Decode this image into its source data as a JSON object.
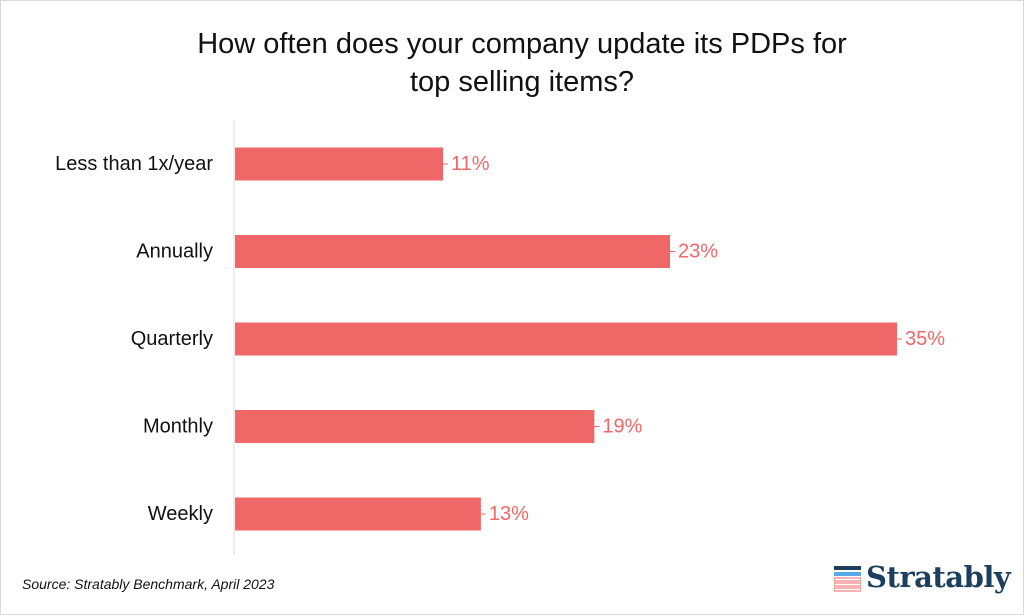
{
  "chart_data": {
    "type": "bar",
    "orientation": "horizontal",
    "title": "How often does your company update its PDPs for top selling items?",
    "title_lines": [
      "How often does your company update its PDPs for",
      "top selling items?"
    ],
    "categories": [
      "Less than 1x/year",
      "Annually",
      "Quarterly",
      "Monthly",
      "Weekly"
    ],
    "values": [
      11,
      23,
      35,
      19,
      13
    ],
    "value_labels": [
      "11%",
      "23%",
      "35%",
      "19%",
      "13%"
    ],
    "xlim": [
      0,
      35
    ],
    "grid": false,
    "legend": "none",
    "bar_color": "#ef6767",
    "label_color": "#ef6767"
  },
  "footer": {
    "source": "Source: Stratably Benchmark, April 2023",
    "logo_text": "Stratably"
  },
  "colors": {
    "bar": "#ef6767",
    "axis": "#d9d9d9",
    "text": "#111111",
    "logo_navy": "#1d3f5e",
    "logo_blue": "#5aa9e6",
    "logo_red": "#ef6767"
  }
}
